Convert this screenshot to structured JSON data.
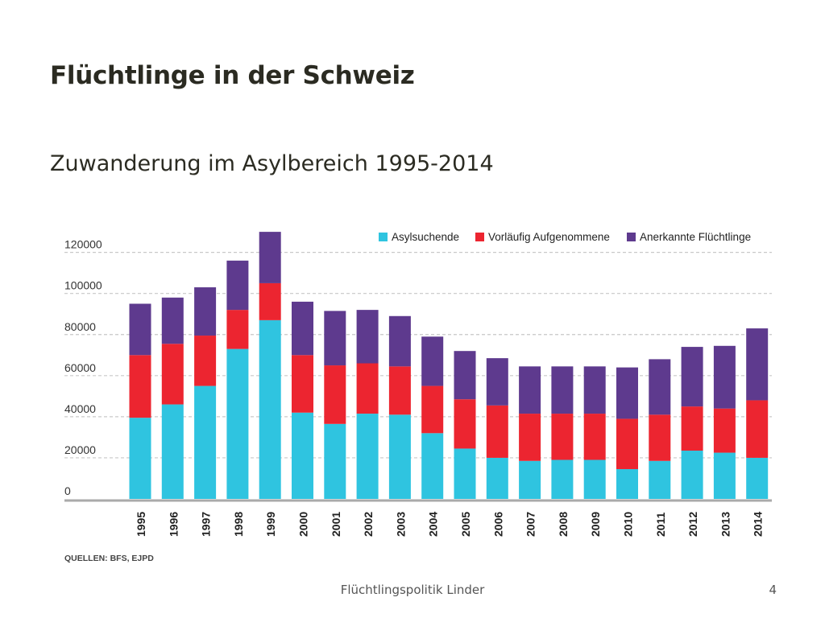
{
  "slide": {
    "title": "Flüchtlinge in der Schweiz",
    "subtitle": "Zuwanderung im Asylbereich 1995-2014",
    "footer": "Flüchtlingspolitik Linder",
    "page_number": "4"
  },
  "chart_data": {
    "type": "bar",
    "stacked": true,
    "title": "",
    "xlabel": "",
    "ylabel": "",
    "ylim": [
      0,
      130000
    ],
    "yticks": [
      0,
      20000,
      40000,
      60000,
      80000,
      100000,
      120000
    ],
    "ytick_labels": [
      "0",
      "20000",
      "40000",
      "60000",
      "80000",
      "100000",
      "120000"
    ],
    "grid": true,
    "legend_position": "top",
    "source_note": "QUELLEN: BFS, EJPD",
    "categories": [
      "1995",
      "1996",
      "1997",
      "1998",
      "1999",
      "2000",
      "2001",
      "2002",
      "2003",
      "2004",
      "2005",
      "2006",
      "2007",
      "2008",
      "2009",
      "2010",
      "2011",
      "2012",
      "2013",
      "2014"
    ],
    "series": [
      {
        "name": "Asylsuchende",
        "color": "#2fc4e0",
        "values": [
          39500,
          46000,
          55000,
          73000,
          87000,
          42000,
          36500,
          41500,
          41000,
          32000,
          24500,
          20000,
          18500,
          19000,
          19000,
          14500,
          18500,
          23500,
          22500,
          20000
        ]
      },
      {
        "name": "Vorläufig Aufgenommene",
        "color": "#ec2530",
        "values": [
          30500,
          29500,
          24500,
          19000,
          18000,
          28000,
          28500,
          24500,
          23500,
          23000,
          24000,
          25500,
          23000,
          22500,
          22500,
          24500,
          22500,
          21500,
          21500,
          28000
        ]
      },
      {
        "name": "Anerkannte Flüchtlinge",
        "color": "#5e3a8e",
        "values": [
          25000,
          22500,
          23500,
          24000,
          25000,
          26000,
          26500,
          26000,
          24500,
          24000,
          23500,
          23000,
          23000,
          23000,
          23000,
          25000,
          27000,
          29000,
          30500,
          35000
        ]
      }
    ]
  }
}
